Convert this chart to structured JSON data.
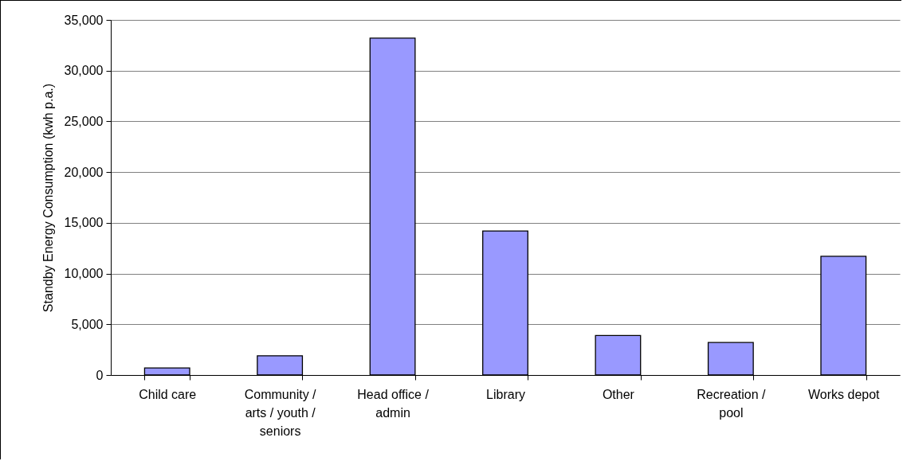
{
  "chart_data": {
    "type": "bar",
    "ylabel": "Standby Energy Consumption (kwh p.a.)",
    "categories": [
      "Child care",
      "Community / arts / youth / seniors",
      "Head office / admin",
      "Library",
      "Other",
      "Recreation / pool",
      "Works depot"
    ],
    "values": [
      700,
      1900,
      33200,
      14200,
      3900,
      3200,
      11700
    ],
    "color": "#9999ff",
    "ylim": [
      0,
      35000
    ],
    "yticks": [
      0,
      {
        "value": 5000,
        "label": "5,000"
      },
      {
        "value": 10000,
        "label": "10,000"
      },
      {
        "value": 15000,
        "label": "15,000"
      },
      {
        "value": 20000,
        "label": "20,000"
      },
      {
        "value": 25000,
        "label": "25,000"
      },
      {
        "value": 30000,
        "label": "30,000"
      },
      {
        "value": 35000,
        "label": "35,000"
      }
    ],
    "grid": "y"
  }
}
